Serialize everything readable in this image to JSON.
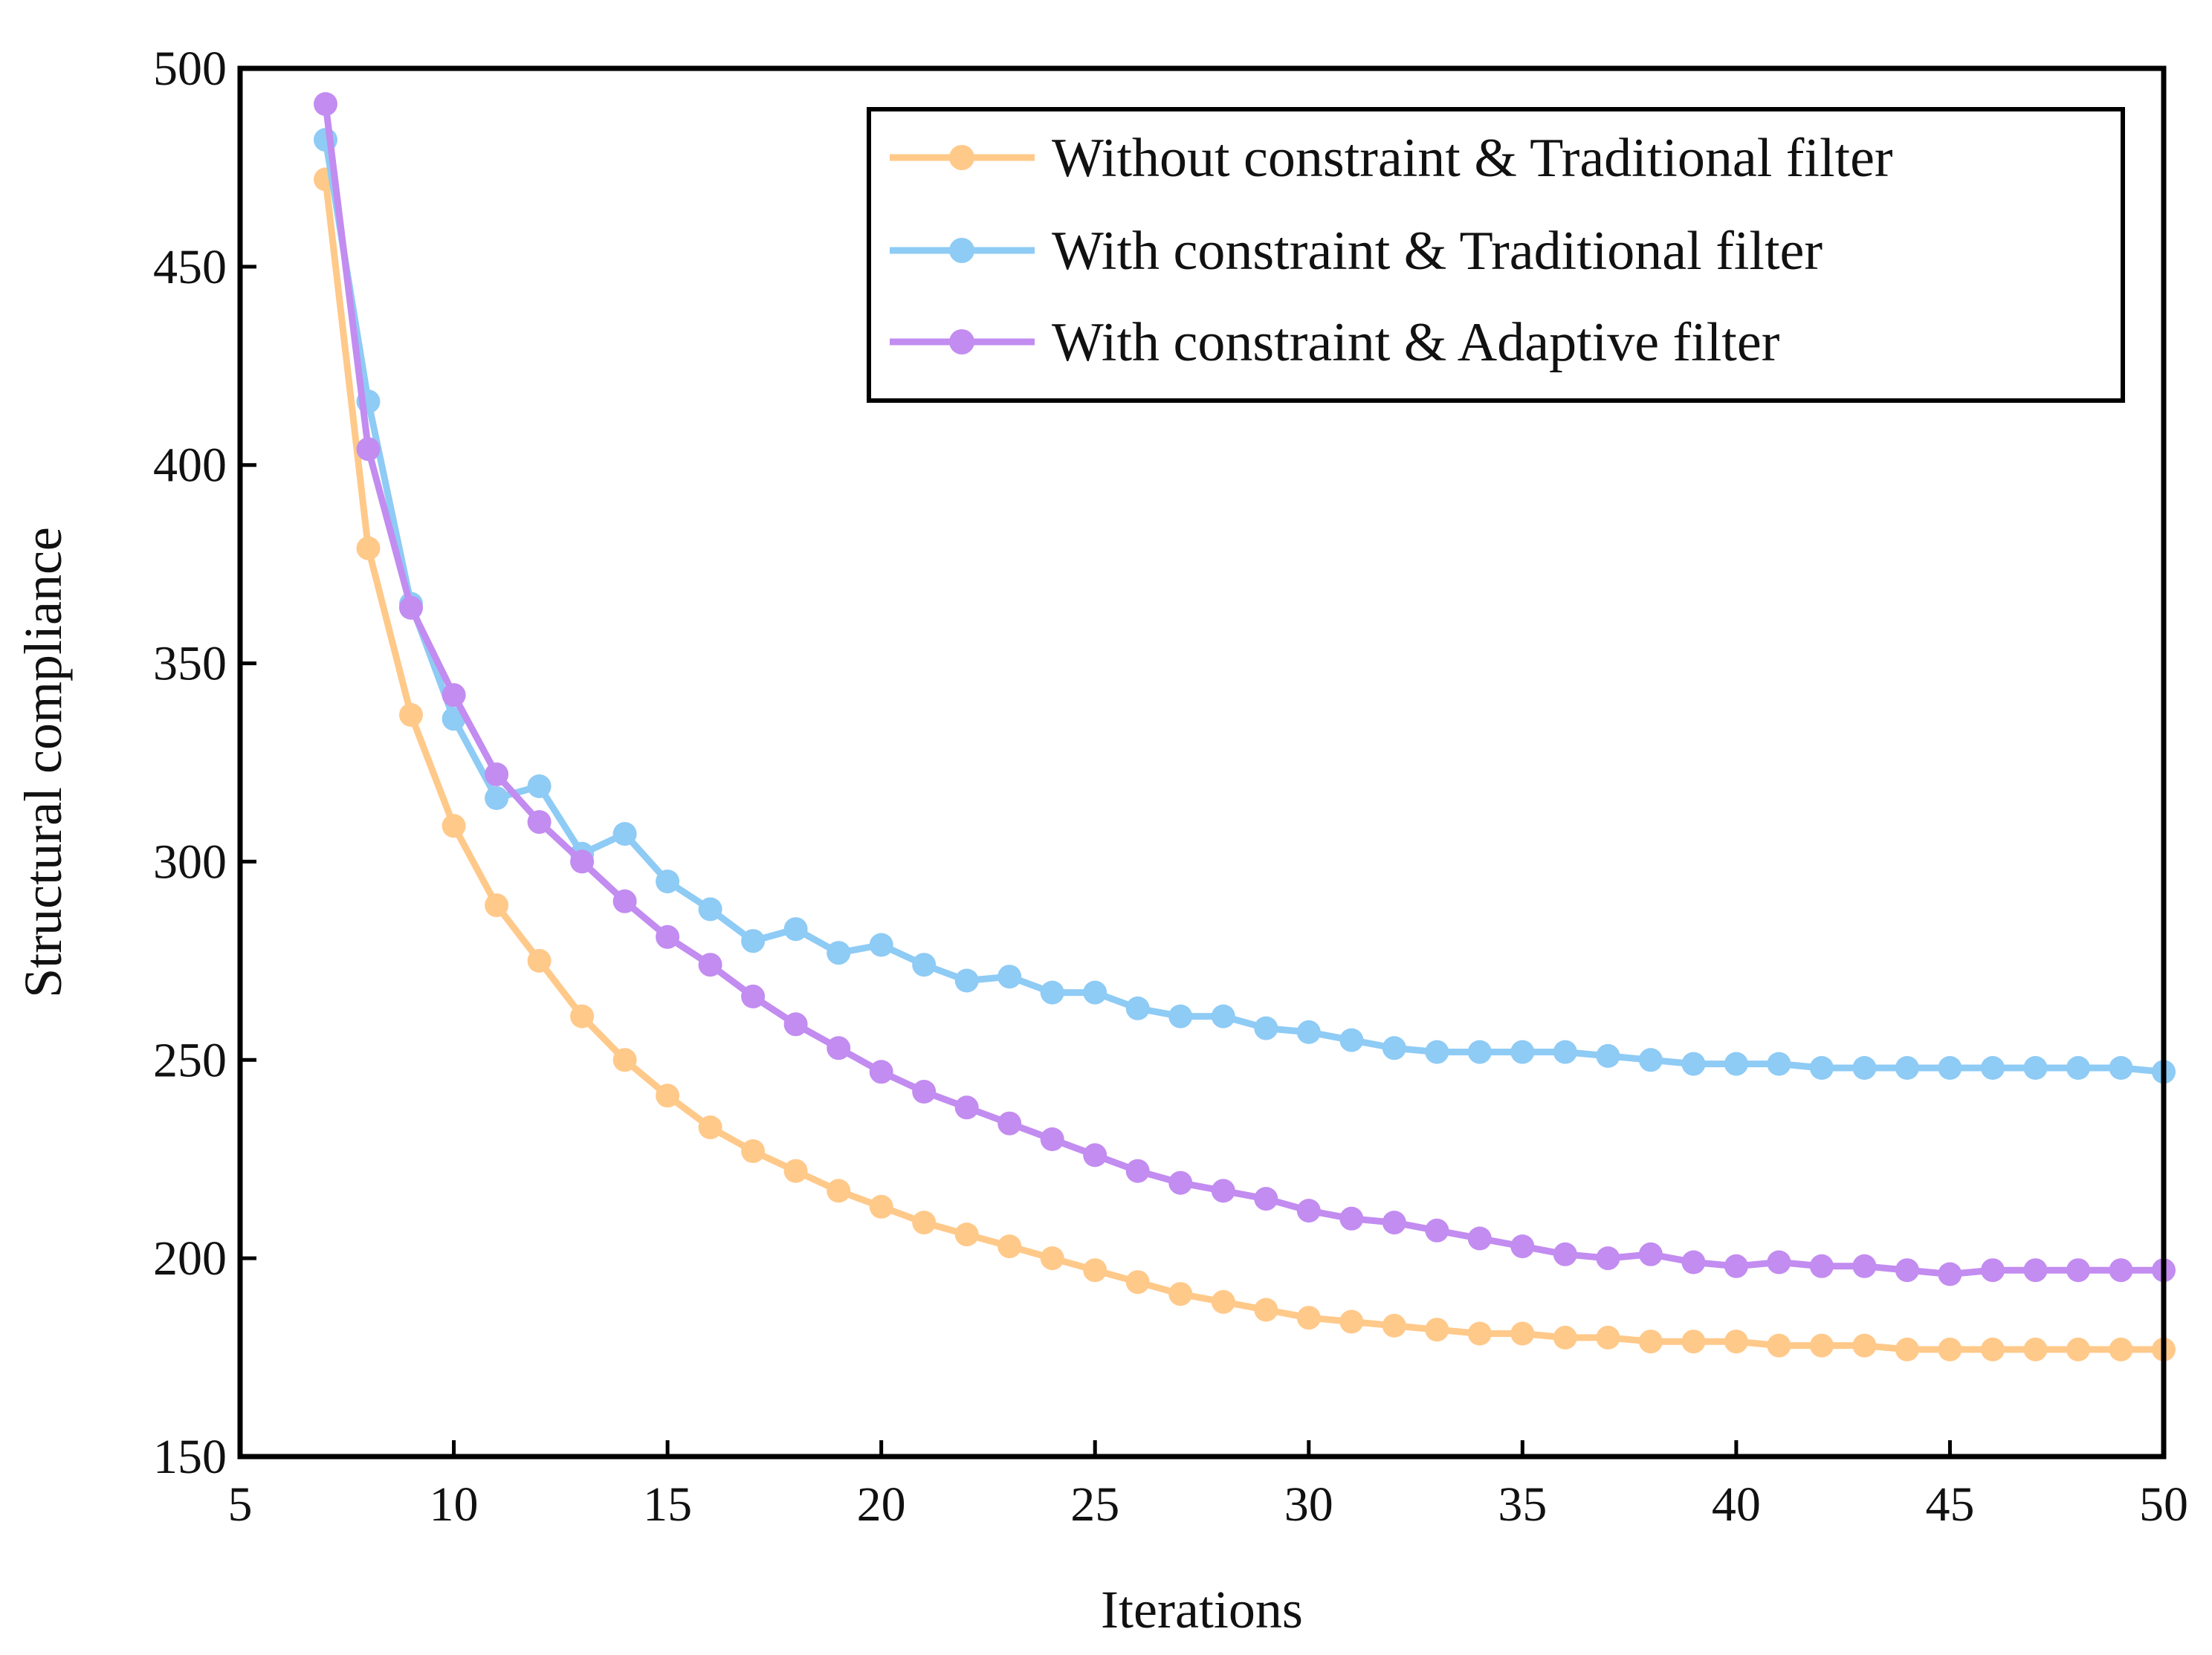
{
  "chart_data": {
    "type": "line",
    "title": "",
    "xlabel": "Iterations",
    "ylabel": "Structural compliance",
    "xlim": [
      5,
      50
    ],
    "ylim": [
      150,
      500
    ],
    "xticks": [
      5,
      10,
      15,
      20,
      25,
      30,
      35,
      40,
      45,
      50
    ],
    "yticks": [
      150,
      200,
      250,
      300,
      350,
      400,
      450,
      500
    ],
    "grid": false,
    "legend_position": "top-right",
    "x": [
      7,
      8,
      9,
      10,
      11,
      12,
      13,
      14,
      15,
      16,
      17,
      18,
      19,
      20,
      21,
      22,
      23,
      24,
      25,
      26,
      27,
      28,
      29,
      30,
      31,
      32,
      33,
      34,
      35,
      36,
      37,
      38,
      39,
      40,
      41,
      42,
      43,
      44,
      45,
      46,
      47,
      48,
      49,
      50
    ],
    "series": [
      {
        "name": "Without constraint & Traditional filter",
        "color": "#FFC98A",
        "values": [
          472,
          379,
          337,
          309,
          289,
          275,
          261,
          250,
          241,
          233,
          227,
          222,
          217,
          213,
          209,
          206,
          203,
          200,
          197,
          194,
          191,
          189,
          187,
          185,
          184,
          183,
          182,
          181,
          181,
          180,
          180,
          179,
          179,
          179,
          178,
          178,
          178,
          177,
          177,
          177,
          177,
          177,
          177,
          177
        ]
      },
      {
        "name": "With constraint & Traditional filter",
        "color": "#8ECBF5",
        "values": [
          482,
          416,
          365,
          336,
          316,
          319,
          302,
          307,
          295,
          288,
          280,
          283,
          277,
          279,
          274,
          270,
          271,
          267,
          267,
          263,
          261,
          261,
          258,
          257,
          255,
          253,
          252,
          252,
          252,
          252,
          251,
          250,
          249,
          249,
          249,
          248,
          248,
          248,
          248,
          248,
          248,
          248,
          248,
          247
        ]
      },
      {
        "name": "With constraint & Adaptive filter",
        "color": "#C28CF0",
        "values": [
          491,
          404,
          364,
          342,
          322,
          310,
          300,
          290,
          281,
          274,
          266,
          259,
          253,
          247,
          242,
          238,
          234,
          230,
          226,
          222,
          219,
          217,
          215,
          212,
          210,
          209,
          207,
          205,
          203,
          201,
          200,
          201,
          199,
          198,
          199,
          198,
          198,
          197,
          196,
          197,
          197,
          197,
          197,
          197
        ]
      }
    ]
  }
}
